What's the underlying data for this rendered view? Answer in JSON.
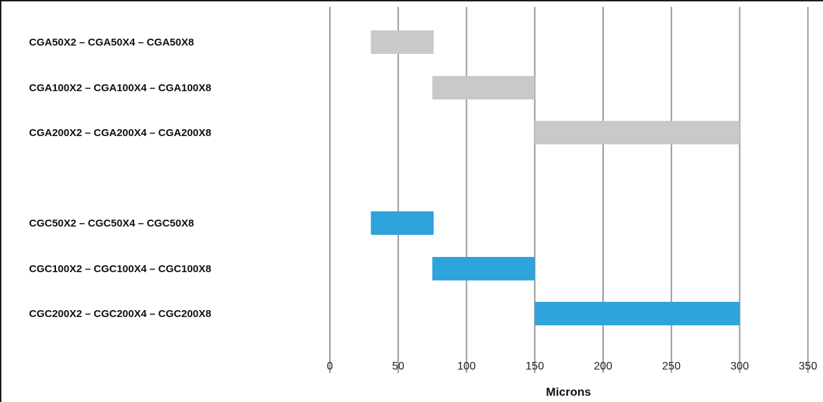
{
  "chart_data": {
    "type": "bar",
    "orientation": "horizontal-range",
    "title": "",
    "xlabel": "Microns",
    "ylabel": "",
    "xlim": [
      0,
      350
    ],
    "xticks": [
      "0",
      "50",
      "100",
      "150",
      "200",
      "250",
      "300",
      "350"
    ],
    "grid": true,
    "colors": {
      "gray": "#c8c9cb",
      "blue": "#2fa3dc",
      "grid": "#999999"
    },
    "bars": [
      {
        "label": "CGA50X2 – CGA50X4 – CGA50X8",
        "start": 30,
        "end": 76,
        "color": "gray"
      },
      {
        "label": "CGA100X2 – CGA100X4 – CGA100X8",
        "start": 75,
        "end": 150,
        "color": "gray"
      },
      {
        "label": "CGA200X2 – CGA200X4 – CGA200X8",
        "start": 150,
        "end": 300,
        "color": "gray"
      },
      {
        "label": "CGC50X2 – CGC50X4 – CGC50X8",
        "start": 30,
        "end": 76,
        "color": "blue"
      },
      {
        "label": "CGC100X2 – CGC100X4 – CGC100X8",
        "start": 75,
        "end": 150,
        "color": "blue"
      },
      {
        "label": "CGC200X2 – CGC200X4 – CGC200X8",
        "start": 150,
        "end": 300,
        "color": "blue"
      }
    ]
  }
}
